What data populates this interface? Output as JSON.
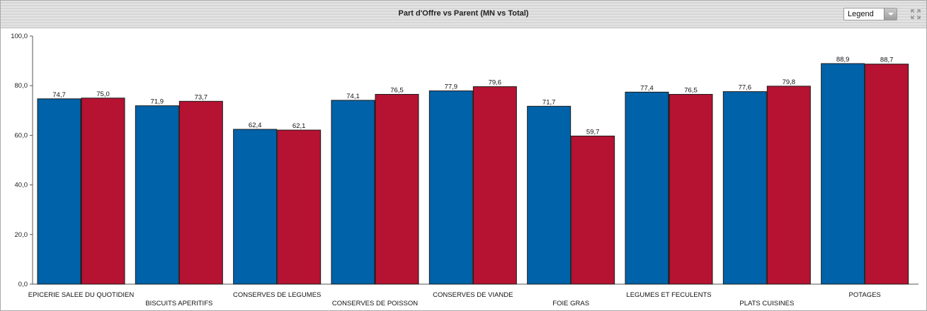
{
  "header": {
    "title": "Part d'Offre vs Parent (MN vs Total)",
    "legend_dropdown": {
      "selected": "Legend"
    },
    "expand_icon": "expand-icon"
  },
  "colors": {
    "series_1": "#0062a8",
    "series_2": "#b61232"
  },
  "chart_data": {
    "type": "bar",
    "title": "Part d'Offre vs Parent (MN vs Total)",
    "xlabel": "",
    "ylabel": "",
    "ylim": [
      0,
      100
    ],
    "yticks": [
      "0,0",
      "20,0",
      "40,0",
      "60,0",
      "80,0",
      "100,0"
    ],
    "grid": false,
    "legend": "hidden",
    "categories": [
      "EPICERIE SALEE DU QUOTIDIEN",
      "BISCUITS APERITIFS",
      "CONSERVES DE LEGUMES",
      "CONSERVES DE POISSON",
      "CONSERVES DE VIANDE",
      "FOIE GRAS",
      "LEGUMES ET FECULENTS",
      "PLATS CUISINES",
      "POTAGES"
    ],
    "series": [
      {
        "values": [
          74.7,
          71.9,
          62.4,
          74.1,
          77.9,
          71.7,
          77.4,
          77.6,
          88.9
        ],
        "labels": [
          "74,7",
          "71,9",
          "62,4",
          "74,1",
          "77,9",
          "71,7",
          "77,4",
          "77,6",
          "88,9"
        ]
      },
      {
        "values": [
          75.0,
          73.7,
          62.1,
          76.5,
          79.6,
          59.7,
          76.5,
          79.8,
          88.7
        ],
        "labels": [
          "75,0",
          "73,7",
          "62,1",
          "76,5",
          "79,6",
          "59,7",
          "76,5",
          "79,8",
          "88,7"
        ]
      }
    ]
  }
}
